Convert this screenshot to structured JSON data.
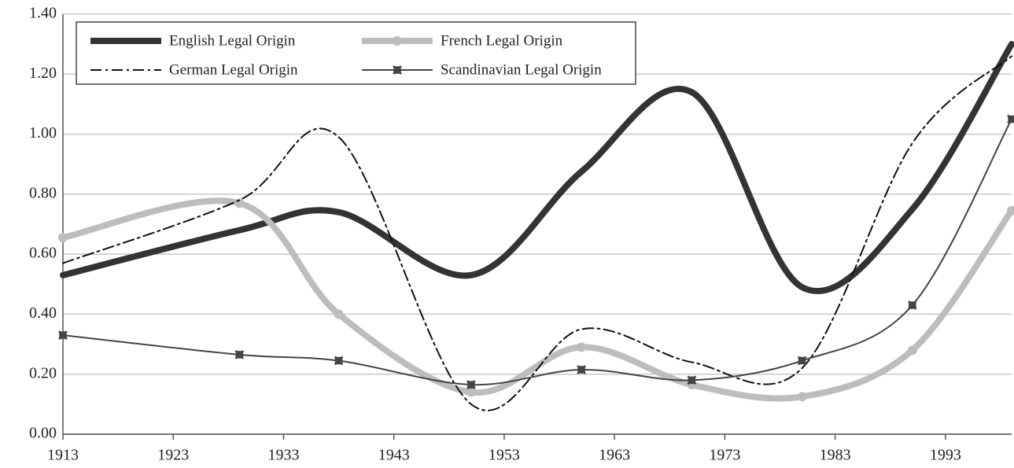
{
  "chart_data": {
    "type": "line",
    "x": [
      1913,
      1929,
      1938,
      1950,
      1960,
      1970,
      1980,
      1990,
      1999
    ],
    "xlim": [
      1913,
      1999
    ],
    "xticks": [
      1913,
      1923,
      1933,
      1943,
      1953,
      1963,
      1973,
      1983,
      1993
    ],
    "ylim": [
      0,
      1.4
    ],
    "yticks": [
      {
        "value": 0,
        "label": "0.00"
      },
      {
        "value": 0.2,
        "label": "0.20"
      },
      {
        "value": 0.4,
        "label": "0.40"
      },
      {
        "value": 0.6,
        "label": "0.60"
      },
      {
        "value": 0.8,
        "label": "0.80"
      },
      {
        "value": 1.0,
        "label": "1.00"
      },
      {
        "value": 1.2,
        "label": "1.20"
      },
      {
        "value": 1.4,
        "label": "1.40"
      }
    ],
    "grid": true,
    "legend": "top-left",
    "series": [
      {
        "name": "English Legal Origin",
        "color": "#333333",
        "line_style": "thick",
        "marker": "none",
        "values": [
          0.53,
          0.68,
          0.74,
          0.53,
          0.875,
          1.14,
          0.49,
          0.75,
          1.3
        ]
      },
      {
        "name": "French Legal Origin",
        "color": "#bdbdbd",
        "line_style": "thick",
        "marker": "circle",
        "values": [
          0.655,
          0.77,
          0.4,
          0.14,
          0.29,
          0.165,
          0.125,
          0.28,
          0.745
        ]
      },
      {
        "name": "German Legal Origin",
        "color": "#111111",
        "line_style": "dashdot",
        "marker": "none",
        "values": [
          0.57,
          0.78,
          0.99,
          0.1,
          0.35,
          0.24,
          0.22,
          0.97,
          1.26
        ]
      },
      {
        "name": "Scandinavian Legal Origin",
        "color": "#444444",
        "line_style": "thin",
        "marker": "x",
        "values": [
          0.33,
          0.265,
          0.245,
          0.165,
          0.215,
          0.18,
          0.245,
          0.43,
          1.05
        ]
      }
    ]
  }
}
